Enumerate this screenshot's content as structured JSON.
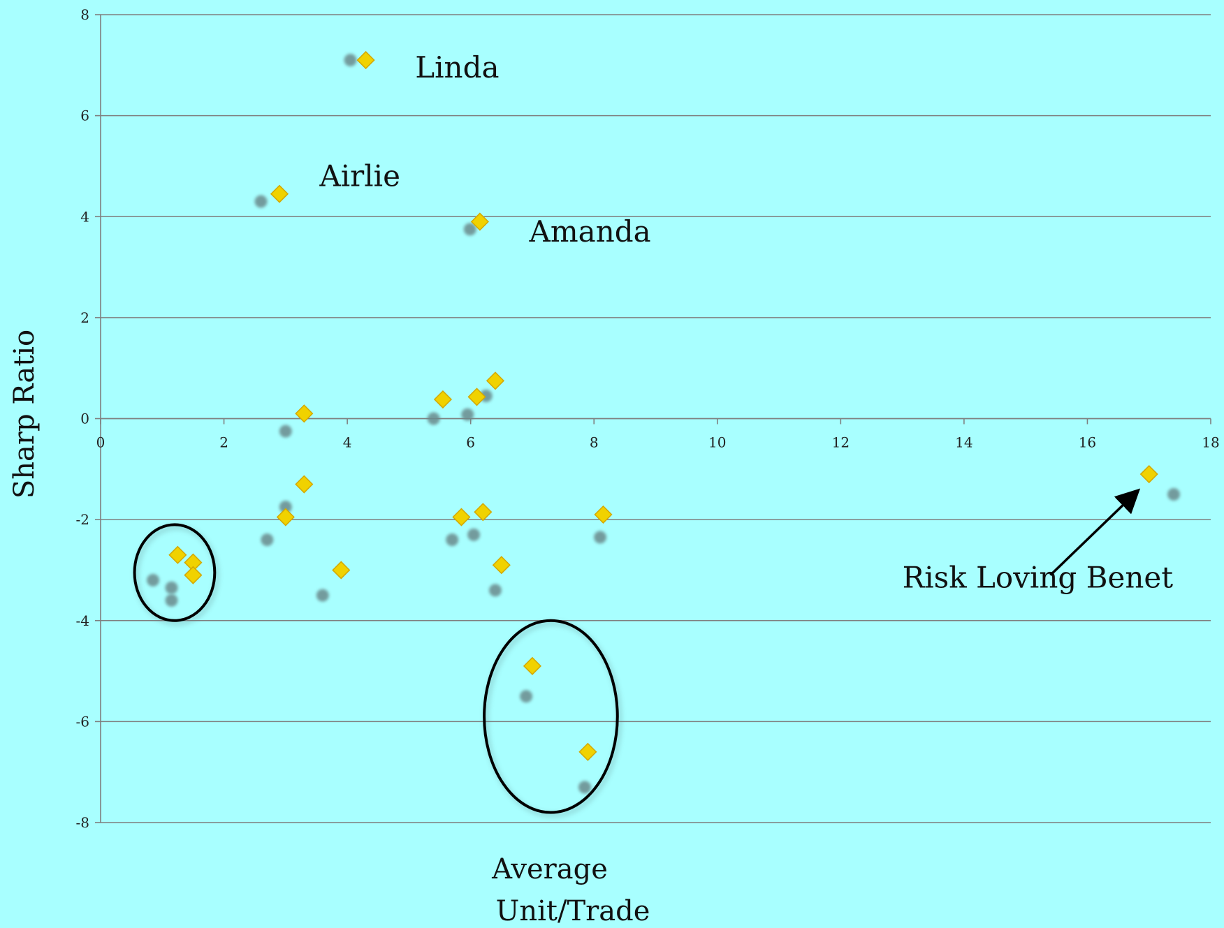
{
  "chart_data": {
    "type": "scatter",
    "title": "",
    "xlabel_lines": [
      "Average",
      "Unit/Trade"
    ],
    "ylabel": "Sharp Ratio",
    "xlim": [
      0,
      18
    ],
    "ylim": [
      -8,
      8
    ],
    "xticks": [
      0,
      2,
      4,
      6,
      8,
      10,
      12,
      14,
      16,
      18
    ],
    "yticks": [
      -8,
      -6,
      -4,
      -2,
      0,
      2,
      4,
      6,
      8
    ],
    "grid": true,
    "colors": {
      "background": "#a8ffff",
      "gridline": "#7f7f7f",
      "diamond": "#f0d200",
      "diamond_edge": "#d4a800",
      "shadow": "#6a8a8c",
      "ellipse": "#000000"
    },
    "series": [
      {
        "marker": "diamond",
        "x": [
          4.3,
          2.9,
          6.15,
          3.3,
          5.55,
          6.1,
          6.4,
          3.3,
          3.0,
          5.85,
          6.2,
          8.15,
          1.25,
          1.5,
          1.5,
          3.9,
          6.5,
          7.0,
          7.9,
          17.0
        ],
        "y": [
          7.1,
          4.45,
          3.9,
          0.1,
          0.38,
          0.43,
          0.75,
          -1.3,
          -1.95,
          -1.95,
          -1.85,
          -1.9,
          -2.7,
          -2.85,
          -3.1,
          -3.0,
          -2.9,
          -4.9,
          -6.6,
          -1.1
        ]
      },
      {
        "marker": "circle",
        "x": [
          4.05,
          2.6,
          5.99,
          3.0,
          5.4,
          5.95,
          6.25,
          3.0,
          2.7,
          5.7,
          6.05,
          8.1,
          0.85,
          1.15,
          1.15,
          3.6,
          6.4,
          6.9,
          7.85,
          17.4
        ],
        "y": [
          7.1,
          4.3,
          3.75,
          -0.25,
          0.0,
          0.08,
          0.45,
          -1.75,
          -2.4,
          -2.4,
          -2.3,
          -2.35,
          -3.2,
          -3.35,
          -3.6,
          -3.5,
          -3.4,
          -5.5,
          -7.3,
          -1.5
        ]
      }
    ],
    "annotations": [
      {
        "text": "Linda",
        "x": 5.1,
        "y": 6.95
      },
      {
        "text": "Airlie",
        "x": 3.55,
        "y": 4.8
      },
      {
        "text": "Amanda",
        "x": 6.95,
        "y": 3.7
      },
      {
        "text": "Risk Loving Benet",
        "x": 13.0,
        "y": -3.15
      }
    ],
    "arrow": {
      "from": [
        15.4,
        -3.1
      ],
      "to": [
        16.8,
        -1.45
      ]
    },
    "ellipses": [
      {
        "cx": 1.2,
        "cy": -3.05,
        "rx": 0.65,
        "ry": 0.95
      },
      {
        "cx": 7.3,
        "cy": -5.9,
        "rx": 1.08,
        "ry": 1.9
      }
    ]
  }
}
